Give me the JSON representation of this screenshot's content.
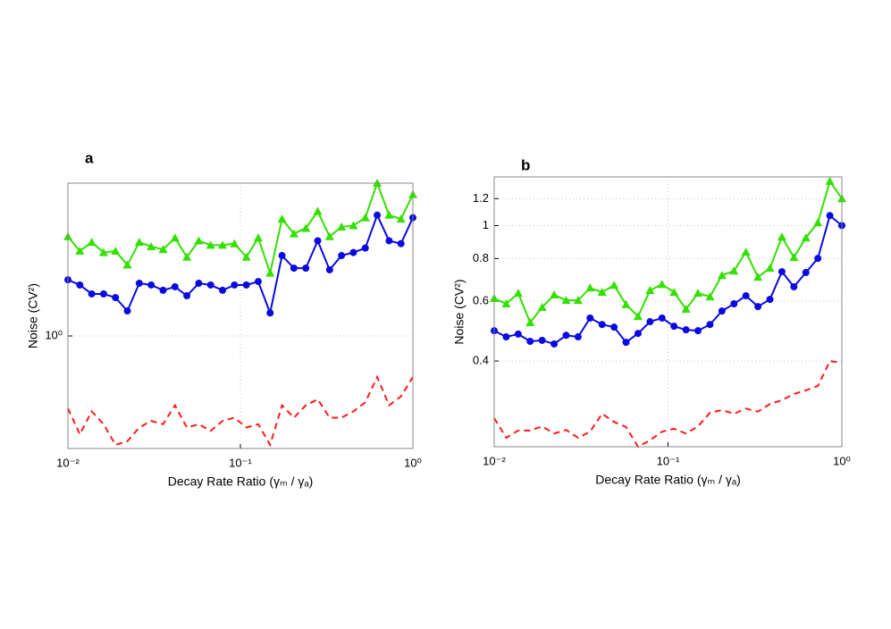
{
  "chart_data": [
    {
      "type": "line",
      "panel_label": "a",
      "x_label": "Decay Rate Ratio (γₘ / γₐ)",
      "y_label": "Noise (CV²)",
      "x_log": true,
      "y_log": true,
      "grid": true,
      "x": [
        0.01,
        0.01172,
        0.01374,
        0.0161,
        0.01887,
        0.02212,
        0.02593,
        0.03039,
        0.03562,
        0.04175,
        0.04894,
        0.05736,
        0.06723,
        0.0788,
        0.09236,
        0.1083,
        0.1269,
        0.1487,
        0.1743,
        0.2043,
        0.2395,
        0.2807,
        0.329,
        0.3857,
        0.452,
        0.5298,
        0.621,
        0.7279,
        0.8532,
        1.0
      ],
      "series": [
        {
          "color": "#33e000",
          "marker": "triangle",
          "linestyle": "solid",
          "values": [
            1.57,
            1.47,
            1.53,
            1.46,
            1.47,
            1.38,
            1.53,
            1.5,
            1.48,
            1.56,
            1.43,
            1.54,
            1.51,
            1.51,
            1.52,
            1.43,
            1.56,
            1.33,
            1.7,
            1.59,
            1.63,
            1.76,
            1.57,
            1.64,
            1.65,
            1.71,
            2.0,
            1.73,
            1.7,
            1.9
          ]
        },
        {
          "color": "#0a0ae0",
          "marker": "circle",
          "linestyle": "solid",
          "values": [
            1.29,
            1.26,
            1.21,
            1.21,
            1.19,
            1.12,
            1.27,
            1.26,
            1.23,
            1.25,
            1.2,
            1.27,
            1.26,
            1.23,
            1.26,
            1.26,
            1.28,
            1.11,
            1.44,
            1.36,
            1.36,
            1.54,
            1.35,
            1.44,
            1.46,
            1.49,
            1.73,
            1.54,
            1.52,
            1.71
          ]
        },
        {
          "color": "#ff1a1a",
          "marker": null,
          "linestyle": "dashed",
          "values": [
            0.72,
            0.64,
            0.71,
            0.67,
            0.61,
            0.62,
            0.66,
            0.68,
            0.67,
            0.73,
            0.66,
            0.67,
            0.65,
            0.68,
            0.69,
            0.66,
            0.67,
            0.61,
            0.73,
            0.69,
            0.73,
            0.75,
            0.69,
            0.69,
            0.71,
            0.74,
            0.83,
            0.73,
            0.76,
            0.83
          ]
        }
      ],
      "xlim": [
        0.01,
        1
      ],
      "xticks": [
        {
          "value": 0.01,
          "label": "10⁻²"
        },
        {
          "value": 0.1,
          "label": "10⁻¹"
        },
        {
          "value": 1,
          "label": "10⁰"
        }
      ],
      "ylim": [
        0.6,
        2.0
      ],
      "yticks": [
        {
          "value": 1,
          "label": "10⁰"
        }
      ]
    },
    {
      "type": "line",
      "panel_label": "b",
      "x_label": "Decay Rate Ratio (γₘ / γₐ)",
      "y_label": "Noise (CV²)",
      "x_log": true,
      "y_log": true,
      "grid": true,
      "x": [
        0.01,
        0.01172,
        0.01374,
        0.0161,
        0.01887,
        0.02212,
        0.02593,
        0.03039,
        0.03562,
        0.04175,
        0.04894,
        0.05736,
        0.06723,
        0.0788,
        0.09236,
        0.1083,
        0.1269,
        0.1487,
        0.1743,
        0.2043,
        0.2395,
        0.2807,
        0.329,
        0.3857,
        0.452,
        0.5298,
        0.621,
        0.7279,
        0.8532,
        1.0
      ],
      "series": [
        {
          "color": "#33e000",
          "marker": "triangle",
          "linestyle": "solid",
          "values": [
            0.611,
            0.589,
            0.633,
            0.519,
            0.575,
            0.626,
            0.603,
            0.603,
            0.656,
            0.637,
            0.668,
            0.586,
            0.541,
            0.645,
            0.672,
            0.637,
            0.568,
            0.633,
            0.618,
            0.714,
            0.736,
            0.836,
            0.706,
            0.75,
            0.926,
            0.806,
            0.921,
            1.02,
            1.35,
            1.2
          ]
        },
        {
          "color": "#0a0ae0",
          "marker": "circle",
          "linestyle": "solid",
          "values": [
            0.491,
            0.471,
            0.48,
            0.457,
            0.46,
            0.449,
            0.476,
            0.471,
            0.535,
            0.512,
            0.503,
            0.454,
            0.482,
            0.522,
            0.535,
            0.506,
            0.494,
            0.491,
            0.512,
            0.561,
            0.589,
            0.622,
            0.578,
            0.607,
            0.732,
            0.661,
            0.728,
            0.801,
            1.07,
            1.0
          ]
        },
        {
          "color": "#ff1a1a",
          "marker": null,
          "linestyle": "dashed",
          "values": [
            0.272,
            0.238,
            0.25,
            0.25,
            0.257,
            0.245,
            0.251,
            0.238,
            0.248,
            0.28,
            0.265,
            0.256,
            0.224,
            0.234,
            0.248,
            0.253,
            0.245,
            0.257,
            0.282,
            0.287,
            0.28,
            0.29,
            0.284,
            0.299,
            0.307,
            0.32,
            0.328,
            0.338,
            0.4,
            0.395
          ]
        }
      ],
      "xlim": [
        0.01,
        1
      ],
      "xticks": [
        {
          "value": 0.01,
          "label": "10⁻²"
        },
        {
          "value": 0.1,
          "label": "10⁻¹"
        },
        {
          "value": 1,
          "label": "10⁰"
        }
      ],
      "ylim": [
        0.224,
        1.39
      ],
      "yticks": [
        0.4,
        0.6,
        0.8,
        1,
        1.2
      ]
    }
  ]
}
